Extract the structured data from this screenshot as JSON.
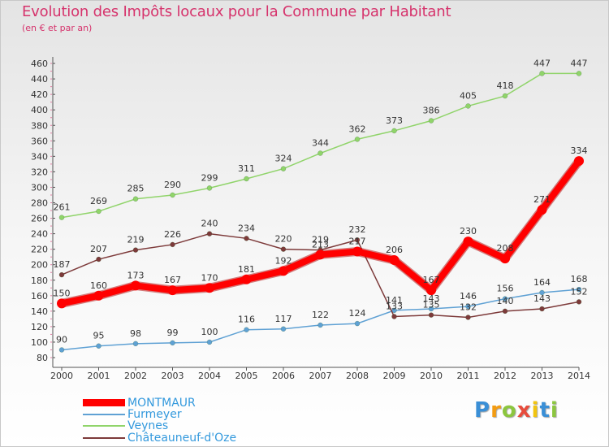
{
  "chart_data": {
    "type": "line",
    "title": "Evolution des Impôts locaux pour la Commune par Habitant",
    "subtitle": "(en € et par an)",
    "x": [
      "2000",
      "2001",
      "2002",
      "2003",
      "2004",
      "2005",
      "2006",
      "2007",
      "2008",
      "2009",
      "2010",
      "2011",
      "2012",
      "2013",
      "2014"
    ],
    "ylim": [
      80,
      460
    ],
    "yticks": [
      80,
      100,
      120,
      140,
      160,
      180,
      200,
      220,
      240,
      260,
      280,
      300,
      320,
      340,
      360,
      380,
      400,
      420,
      440,
      460
    ],
    "grid": false,
    "series": [
      {
        "name": "MONTMAUR",
        "color": "#ff0000",
        "values": [
          150,
          160,
          173,
          167,
          170,
          181,
          192,
          213,
          217,
          206,
          167,
          230,
          208,
          271,
          334
        ],
        "labels": [
          "150",
          "160",
          "173",
          "167",
          "170",
          "181",
          "192",
          "213",
          "217",
          "206",
          "167",
          "230",
          "208",
          "271",
          "334"
        ]
      },
      {
        "name": "Furmeyer",
        "color": "#5fa1d4",
        "values": [
          90,
          95,
          98,
          99,
          100,
          116,
          117,
          122,
          124,
          141,
          143,
          146,
          156,
          164,
          168
        ],
        "labels": [
          "90",
          "95",
          "98",
          "99",
          "100",
          "116",
          "117",
          "122",
          "124",
          "141",
          "143",
          "146",
          "156",
          "164",
          "168"
        ]
      },
      {
        "name": "Veynes",
        "color": "#90d46a",
        "values": [
          261,
          269,
          285,
          290,
          299,
          311,
          324,
          344,
          362,
          373,
          386,
          405,
          418,
          447,
          447
        ],
        "labels": [
          "261",
          "269",
          "285",
          "290",
          "299",
          "311",
          "324",
          "344",
          "362",
          "373",
          "386",
          "405",
          "418",
          "447",
          "447"
        ]
      },
      {
        "name": "Châteauneuf-d'Oze",
        "color": "#7d3a3a",
        "values": [
          187,
          207,
          219,
          226,
          240,
          234,
          220,
          219,
          232,
          133,
          135,
          132,
          140,
          143,
          152
        ],
        "labels": [
          "187",
          "207",
          "219",
          "226",
          "240",
          "234",
          "220",
          "219",
          "232",
          "133",
          "135",
          "132",
          "140",
          "143",
          "152"
        ]
      }
    ]
  },
  "logo": {
    "letters": [
      "P",
      "r",
      "o",
      "x",
      "i",
      "t",
      "i"
    ],
    "colors": [
      "#3a8fd6",
      "#f39c12",
      "#8cc63f",
      "#e74c3c",
      "#f1c40f",
      "#3a8fd6",
      "#8cc63f"
    ]
  }
}
